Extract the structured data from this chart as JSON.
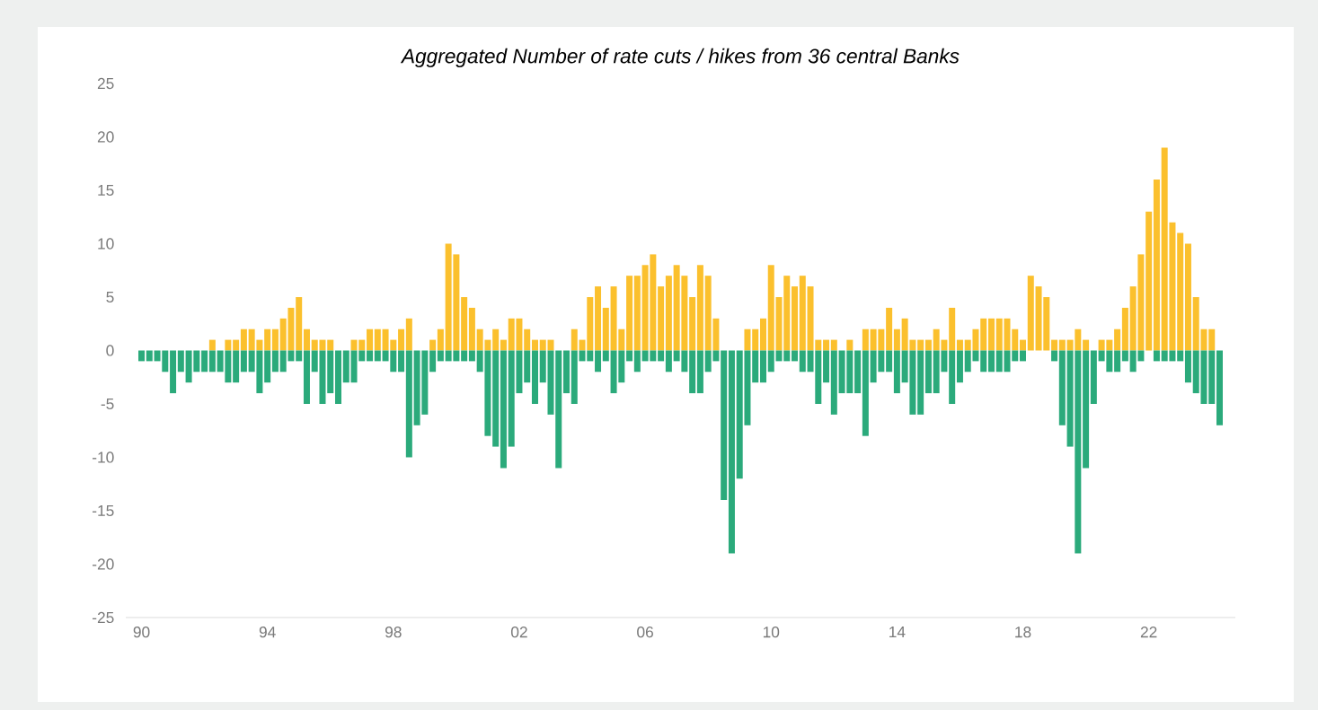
{
  "chart_data": {
    "type": "bar",
    "title": "*Aggregated Number of rate cuts / hikes from 36 central Banks*",
    "x": [
      1990,
      1990.25,
      1990.5,
      1990.75,
      1991,
      1991.25,
      1991.5,
      1991.75,
      1992,
      1992.25,
      1992.5,
      1992.75,
      1993,
      1993.25,
      1993.5,
      1993.75,
      1994,
      1994.25,
      1994.5,
      1994.75,
      1995,
      1995.25,
      1995.5,
      1995.75,
      1996,
      1996.25,
      1996.5,
      1996.75,
      1997,
      1997.25,
      1997.5,
      1997.75,
      1998,
      1998.25,
      1998.5,
      1998.75,
      1999,
      1999.25,
      1999.5,
      1999.75,
      2000,
      2000.25,
      2000.5,
      2000.75,
      2001,
      2001.25,
      2001.5,
      2001.75,
      2002,
      2002.25,
      2002.5,
      2002.75,
      2003,
      2003.25,
      2003.5,
      2003.75,
      2004,
      2004.25,
      2004.5,
      2004.75,
      2005,
      2005.25,
      2005.5,
      2005.75,
      2006,
      2006.25,
      2006.5,
      2006.75,
      2007,
      2007.25,
      2007.5,
      2007.75,
      2008,
      2008.25,
      2008.5,
      2008.75,
      2009,
      2009.25,
      2009.5,
      2009.75,
      2010,
      2010.25,
      2010.5,
      2010.75,
      2011,
      2011.25,
      2011.5,
      2011.75,
      2012,
      2012.25,
      2012.5,
      2012.75,
      2013,
      2013.25,
      2013.5,
      2013.75,
      2014,
      2014.25,
      2014.5,
      2014.75,
      2015,
      2015.25,
      2015.5,
      2015.75,
      2016,
      2016.25,
      2016.5,
      2016.75,
      2017,
      2017.25,
      2017.5,
      2017.75,
      2018,
      2018.25,
      2018.5,
      2018.75,
      2019,
      2019.25,
      2019.5,
      2019.75,
      2020,
      2020.25,
      2020.5,
      2020.75,
      2021,
      2021.25,
      2021.5,
      2021.75,
      2022,
      2022.25,
      2022.5,
      2022.75,
      2023,
      2023.25,
      2023.5,
      2023.75,
      2024,
      2024.25
    ],
    "series": [
      {
        "color": "#fbc02d",
        "values": [
          0,
          0,
          0,
          0,
          0,
          0,
          0,
          0,
          0,
          1,
          0,
          1,
          1,
          2,
          2,
          1,
          2,
          2,
          3,
          4,
          5,
          2,
          1,
          1,
          1,
          0,
          0,
          1,
          1,
          2,
          2,
          2,
          1,
          2,
          3,
          0,
          0,
          1,
          2,
          10,
          9,
          5,
          4,
          2,
          1,
          2,
          1,
          3,
          3,
          2,
          1,
          1,
          1,
          0,
          0,
          2,
          1,
          5,
          6,
          4,
          6,
          2,
          7,
          7,
          8,
          9,
          6,
          7,
          8,
          7,
          5,
          8,
          7,
          3,
          0,
          0,
          0,
          2,
          2,
          3,
          8,
          5,
          7,
          6,
          7,
          6,
          1,
          1,
          1,
          0,
          1,
          0,
          2,
          2,
          2,
          4,
          2,
          3,
          1,
          1,
          1,
          2,
          1,
          4,
          1,
          1,
          2,
          3,
          3,
          3,
          3,
          2,
          1,
          7,
          6,
          5,
          1,
          1,
          1,
          2,
          1,
          0,
          1,
          1,
          2,
          4,
          6,
          9,
          13,
          16,
          19,
          12,
          11,
          10,
          5,
          2,
          2,
          0
        ]
      },
      {
        "color": "#2baa7b",
        "values": [
          -1,
          -1,
          -1,
          -2,
          -4,
          -2,
          -3,
          -2,
          -2,
          -2,
          -2,
          -3,
          -3,
          -2,
          -2,
          -4,
          -3,
          -2,
          -2,
          -1,
          -1,
          -5,
          -2,
          -5,
          -4,
          -5,
          -3,
          -3,
          -1,
          -1,
          -1,
          -1,
          -2,
          -2,
          -10,
          -7,
          -6,
          -2,
          -1,
          -1,
          -1,
          -1,
          -1,
          -2,
          -8,
          -9,
          -11,
          -9,
          -4,
          -3,
          -5,
          -3,
          -6,
          -11,
          -4,
          -5,
          -1,
          -1,
          -2,
          -1,
          -4,
          -3,
          -1,
          -2,
          -1,
          -1,
          -1,
          -2,
          -1,
          -2,
          -4,
          -4,
          -2,
          -1,
          -14,
          -19,
          -12,
          -7,
          -3,
          -3,
          -2,
          -1,
          -1,
          -1,
          -2,
          -2,
          -5,
          -3,
          -6,
          -4,
          -4,
          -4,
          -8,
          -3,
          -2,
          -2,
          -4,
          -3,
          -6,
          -6,
          -4,
          -4,
          -2,
          -5,
          -3,
          -2,
          -1,
          -2,
          -2,
          -2,
          -2,
          -1,
          -1,
          0,
          0,
          0,
          -1,
          -7,
          -9,
          -19,
          -11,
          -5,
          -1,
          -2,
          -2,
          -1,
          -2,
          -1,
          0,
          -1,
          -1,
          -1,
          -1,
          -3,
          -4,
          -5,
          -5,
          -7
        ]
      }
    ],
    "stacked": true,
    "xlim": [
      1989.5,
      2024.75
    ],
    "xticks": [
      {
        "value": 1990,
        "label": "90"
      },
      {
        "value": 1994,
        "label": "94"
      },
      {
        "value": 1998,
        "label": "98"
      },
      {
        "value": 2002,
        "label": "02"
      },
      {
        "value": 2006,
        "label": "06"
      },
      {
        "value": 2010,
        "label": "10"
      },
      {
        "value": 2014,
        "label": "14"
      },
      {
        "value": 2018,
        "label": "18"
      },
      {
        "value": 2022,
        "label": "22"
      }
    ],
    "ylim": [
      -25,
      25
    ],
    "yticks": [
      -25,
      -20,
      -15,
      -10,
      -5,
      0,
      5,
      10,
      15,
      20,
      25
    ]
  }
}
